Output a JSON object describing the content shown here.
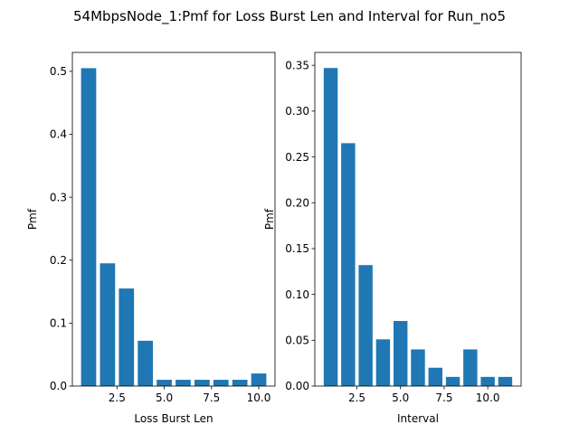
{
  "figure": {
    "title": "54MbpsNode_1:Pmf for Loss Burst Len and Interval for Run_no5",
    "bar_color": "#1f77b4"
  },
  "chart_data": [
    {
      "type": "bar",
      "xlabel": "Loss Burst Len",
      "ylabel": "Pmf",
      "x": [
        1,
        2,
        3,
        4,
        5,
        6,
        7,
        8,
        9,
        10
      ],
      "values": [
        0.505,
        0.195,
        0.155,
        0.072,
        0.01,
        0.01,
        0.01,
        0.01,
        0.01,
        0.02
      ],
      "xlim": [
        0.14,
        10.86
      ],
      "ylim": [
        0,
        0.53
      ],
      "xticks": [
        2.5,
        5.0,
        7.5,
        10.0
      ],
      "xtick_labels": [
        "2.5",
        "5.0",
        "7.5",
        "10.0"
      ],
      "yticks": [
        0,
        0.1,
        0.2,
        0.3,
        0.4,
        0.5
      ],
      "ytick_labels": [
        "0.0",
        "0.1",
        "0.2",
        "0.3",
        "0.4",
        "0.5"
      ],
      "grid": false,
      "legend": "none"
    },
    {
      "type": "bar",
      "xlabel": "Interval",
      "ylabel": "Pmf",
      "x": [
        1,
        2,
        3,
        4,
        5,
        6,
        7,
        8,
        9,
        10,
        11
      ],
      "values": [
        0.347,
        0.265,
        0.132,
        0.051,
        0.071,
        0.04,
        0.02,
        0.01,
        0.04,
        0.01,
        0.01
      ],
      "xlim": [
        0.09,
        11.91
      ],
      "ylim": [
        0,
        0.364
      ],
      "xticks": [
        2.5,
        5.0,
        7.5,
        10.0
      ],
      "xtick_labels": [
        "2.5",
        "5.0",
        "7.5",
        "10.0"
      ],
      "yticks": [
        0,
        0.05,
        0.1,
        0.15,
        0.2,
        0.25,
        0.3,
        0.35
      ],
      "ytick_labels": [
        "0.00",
        "0.05",
        "0.10",
        "0.15",
        "0.20",
        "0.25",
        "0.30",
        "0.35"
      ],
      "grid": false,
      "legend": "none"
    }
  ]
}
